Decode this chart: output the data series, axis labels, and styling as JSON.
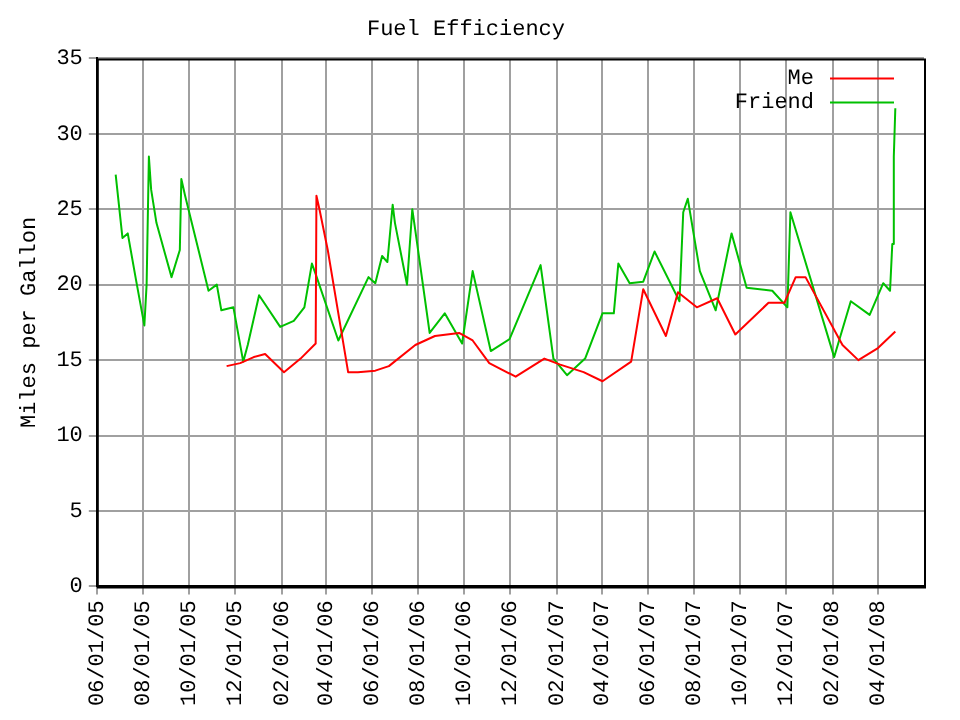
{
  "chart_data": {
    "type": "line",
    "title": "Fuel Efficiency",
    "ylabel": "Miles per Gallon",
    "xlim": [
      "2005-06-01",
      "2008-06-01"
    ],
    "xticks": [
      {
        "value": "2005-06-01",
        "label": "06/01/05"
      },
      {
        "value": "2005-08-01",
        "label": "08/01/05"
      },
      {
        "value": "2005-10-01",
        "label": "10/01/05"
      },
      {
        "value": "2005-12-01",
        "label": "12/01/05"
      },
      {
        "value": "2006-02-01",
        "label": "02/01/06"
      },
      {
        "value": "2006-04-01",
        "label": "04/01/06"
      },
      {
        "value": "2006-06-01",
        "label": "06/01/06"
      },
      {
        "value": "2006-08-01",
        "label": "08/01/06"
      },
      {
        "value": "2006-10-01",
        "label": "10/01/06"
      },
      {
        "value": "2006-12-01",
        "label": "12/01/06"
      },
      {
        "value": "2007-02-01",
        "label": "02/01/07"
      },
      {
        "value": "2007-04-01",
        "label": "04/01/07"
      },
      {
        "value": "2007-06-01",
        "label": "06/01/07"
      },
      {
        "value": "2007-08-01",
        "label": "08/01/07"
      },
      {
        "value": "2007-10-01",
        "label": "10/01/07"
      },
      {
        "value": "2007-12-01",
        "label": "12/01/07"
      },
      {
        "value": "2008-02-01",
        "label": "02/01/08"
      },
      {
        "value": "2008-04-01",
        "label": "04/01/08"
      }
    ],
    "ylim": [
      0,
      35
    ],
    "yticks": [
      0,
      5,
      10,
      15,
      20,
      25,
      30,
      35
    ],
    "grid": true,
    "legend": "top right",
    "marker": "none",
    "line_style": "solid",
    "series": [
      {
        "name": "Me",
        "color": "#ff0000",
        "x": [
          "2005-11-20",
          "2005-12-08",
          "2005-12-26",
          "2006-01-10",
          "2006-02-04",
          "2006-02-26",
          "2006-03-18",
          "2006-03-19",
          "2006-03-23",
          "2006-04-03",
          "2006-04-30",
          "2006-05-13",
          "2006-06-05",
          "2006-06-23",
          "2006-07-28",
          "2006-08-23",
          "2006-09-24",
          "2006-10-12",
          "2006-11-03",
          "2006-12-08",
          "2007-01-15",
          "2007-02-05",
          "2007-03-08",
          "2007-04-02",
          "2007-05-10",
          "2007-05-26",
          "2007-06-25",
          "2007-07-11",
          "2007-08-05",
          "2007-09-01",
          "2007-09-25",
          "2007-11-08",
          "2007-11-29",
          "2007-12-14",
          "2007-12-27",
          "2008-02-14",
          "2008-03-06",
          "2008-04-01",
          "2008-04-24"
        ],
        "values": [
          14.6,
          14.8,
          15.2,
          15.4,
          14.2,
          15.1,
          16.1,
          25.9,
          25.0,
          22.3,
          14.2,
          14.2,
          14.3,
          14.6,
          16.0,
          16.6,
          16.8,
          16.3,
          14.8,
          13.9,
          15.1,
          14.7,
          14.2,
          13.6,
          14.9,
          19.7,
          16.6,
          19.5,
          18.5,
          19.1,
          16.7,
          18.8,
          18.8,
          20.5,
          20.5,
          16.0,
          15.0,
          15.8,
          16.9
        ]
      },
      {
        "name": "Friend",
        "color": "#00c000",
        "x": [
          "2005-06-26",
          "2005-07-05",
          "2005-07-12",
          "2005-07-23",
          "2005-08-03",
          "2005-08-06",
          "2005-08-09",
          "2005-08-12",
          "2005-08-19",
          "2005-09-08",
          "2005-09-19",
          "2005-09-21",
          "2005-09-26",
          "2005-10-27",
          "2005-11-07",
          "2005-11-13",
          "2005-11-29",
          "2005-12-12",
          "2005-12-18",
          "2006-01-02",
          "2006-01-30",
          "2006-02-17",
          "2006-03-03",
          "2006-03-13",
          "2006-03-18",
          "2006-04-17",
          "2006-05-27",
          "2006-06-05",
          "2006-06-14",
          "2006-06-21",
          "2006-06-28",
          "2006-07-01",
          "2006-07-17",
          "2006-07-24",
          "2006-07-28",
          "2006-08-16",
          "2006-09-05",
          "2006-09-28",
          "2006-10-12",
          "2006-11-05",
          "2006-11-30",
          "2007-01-10",
          "2007-01-27",
          "2007-02-14",
          "2007-03-10",
          "2007-04-02",
          "2007-04-17",
          "2007-04-23",
          "2007-05-08",
          "2007-05-26",
          "2007-06-10",
          "2007-07-13",
          "2007-07-18",
          "2007-07-24",
          "2007-08-09",
          "2007-08-30",
          "2007-09-20",
          "2007-10-10",
          "2007-11-13",
          "2007-12-03",
          "2007-12-07",
          "2008-02-03",
          "2008-02-25",
          "2008-03-21",
          "2008-04-08",
          "2008-04-17",
          "2008-04-20",
          "2008-04-22",
          "2008-04-24"
        ],
        "values": [
          27.3,
          23.1,
          23.4,
          20.3,
          17.3,
          20.0,
          28.5,
          26.3,
          24.1,
          20.5,
          22.3,
          27.0,
          25.9,
          19.6,
          20.0,
          18.3,
          18.5,
          14.9,
          16.0,
          19.3,
          17.2,
          17.6,
          18.5,
          21.4,
          20.7,
          16.3,
          20.5,
          20.1,
          21.9,
          21.5,
          25.3,
          24.1,
          20.0,
          25.0,
          23.6,
          16.8,
          18.1,
          16.1,
          20.9,
          15.6,
          16.4,
          21.3,
          15.1,
          14.0,
          15.1,
          18.1,
          18.1,
          21.4,
          20.1,
          20.2,
          22.2,
          18.9,
          24.8,
          25.7,
          20.9,
          18.3,
          23.4,
          19.8,
          19.6,
          18.5,
          24.8,
          15.2,
          18.9,
          18.0,
          20.1,
          19.6,
          22.7,
          28.5,
          31.7
        ]
      }
    ]
  }
}
